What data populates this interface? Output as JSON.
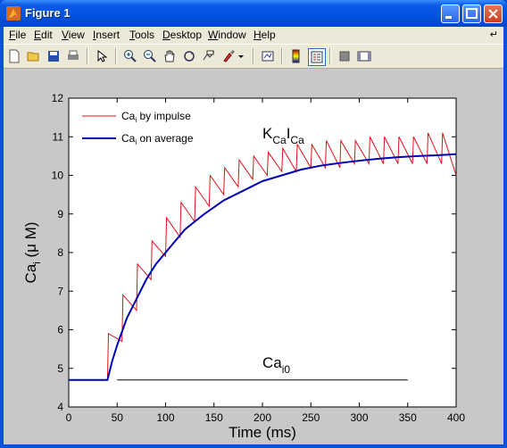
{
  "window": {
    "title": "Figure 1"
  },
  "menubar": {
    "items": [
      {
        "label": "File",
        "ul": "F",
        "rest": "ile"
      },
      {
        "label": "Edit",
        "ul": "E",
        "rest": "dit"
      },
      {
        "label": "View",
        "ul": "V",
        "rest": "iew"
      },
      {
        "label": "Insert",
        "ul": "I",
        "rest": "nsert"
      },
      {
        "label": "Tools",
        "ul": "T",
        "rest": "ools"
      },
      {
        "label": "Desktop",
        "ul": "D",
        "rest": "esktop"
      },
      {
        "label": "Window",
        "ul": "W",
        "rest": "indow"
      },
      {
        "label": "Help",
        "ul": "H",
        "rest": "elp"
      }
    ]
  },
  "toolbar": {
    "icons": [
      "new-figure-icon",
      "open-file-icon",
      "save-icon",
      "print-icon",
      "pointer-icon",
      "zoom-in-icon",
      "zoom-out-icon",
      "pan-hand-icon",
      "rotate-3d-icon",
      "data-cursor-icon",
      "brush-icon",
      "brush-dropdown-icon",
      "link-plot-icon",
      "colorbar-icon",
      "legend-icon",
      "hide-plot-tools-icon",
      "show-plot-tools-icon"
    ]
  },
  "chart_data": {
    "type": "line",
    "xlabel": "Time (ms)",
    "ylabel": "Ca",
    "ylabel_sub": "i",
    "ylabel_rest": " (μ M)",
    "xlim": [
      0,
      400
    ],
    "ylim": [
      4,
      12
    ],
    "xticks": [
      0,
      50,
      100,
      150,
      200,
      250,
      300,
      350,
      400
    ],
    "yticks": [
      4,
      5,
      6,
      7,
      8,
      9,
      10,
      11,
      12
    ],
    "grid": false,
    "legend": {
      "placement": "top-left",
      "entries": [
        {
          "pre": "Ca",
          "sub": "i",
          "post": " by impulse",
          "color": "#e0101a"
        },
        {
          "pre": "Ca",
          "sub": "i",
          "post": " on average",
          "color": "#0000b4"
        }
      ]
    },
    "annotations": {
      "kca": {
        "main": "K",
        "sub1": "Ca",
        "mid": "I",
        "sub2": "Ca",
        "x": 200,
        "y": 11.0
      },
      "cai0": {
        "main": "Ca",
        "sub": "i0",
        "x": 200,
        "y": 4.9
      }
    },
    "series": [
      {
        "name": "Ca by impulse",
        "color": "#e0101a",
        "width": 1,
        "x": [
          0,
          39,
          40,
          41,
          55,
          56,
          70,
          71,
          85,
          86,
          100,
          101,
          115,
          116,
          130,
          131,
          145,
          146,
          160,
          161,
          175,
          176,
          190,
          191,
          205,
          206,
          220,
          221,
          235,
          236,
          250,
          251,
          265,
          266,
          280,
          281,
          295,
          296,
          310,
          311,
          325,
          326,
          340,
          341,
          355,
          356,
          370,
          371,
          385,
          386,
          400
        ],
        "y": [
          4.7,
          4.7,
          4.7,
          5.9,
          5.7,
          6.9,
          6.5,
          7.7,
          7.3,
          8.3,
          7.9,
          8.9,
          8.4,
          9.3,
          8.8,
          9.7,
          9.2,
          10.0,
          9.5,
          10.2,
          9.7,
          10.4,
          9.9,
          10.5,
          10.0,
          10.6,
          10.1,
          10.7,
          10.1,
          10.8,
          10.2,
          10.8,
          10.2,
          10.9,
          10.2,
          10.9,
          10.3,
          10.9,
          10.3,
          11.0,
          10.3,
          11.0,
          10.3,
          11.0,
          10.3,
          11.0,
          10.3,
          11.1,
          10.3,
          11.1,
          10.0
        ]
      },
      {
        "name": "Ca on average",
        "color": "#0000b4",
        "width": 2,
        "x": [
          0,
          40,
          45,
          50,
          60,
          70,
          80,
          90,
          100,
          120,
          140,
          160,
          180,
          200,
          220,
          240,
          260,
          280,
          300,
          320,
          340,
          360,
          380,
          400
        ],
        "y": [
          4.7,
          4.7,
          5.2,
          5.6,
          6.3,
          6.8,
          7.3,
          7.7,
          8.0,
          8.6,
          9.0,
          9.35,
          9.6,
          9.85,
          10.0,
          10.15,
          10.25,
          10.32,
          10.38,
          10.43,
          10.47,
          10.5,
          10.52,
          10.55
        ]
      },
      {
        "name": "Ca i0",
        "color": "#000000",
        "width": 1,
        "x": [
          50,
          350
        ],
        "y": [
          4.7,
          4.7
        ]
      }
    ]
  }
}
